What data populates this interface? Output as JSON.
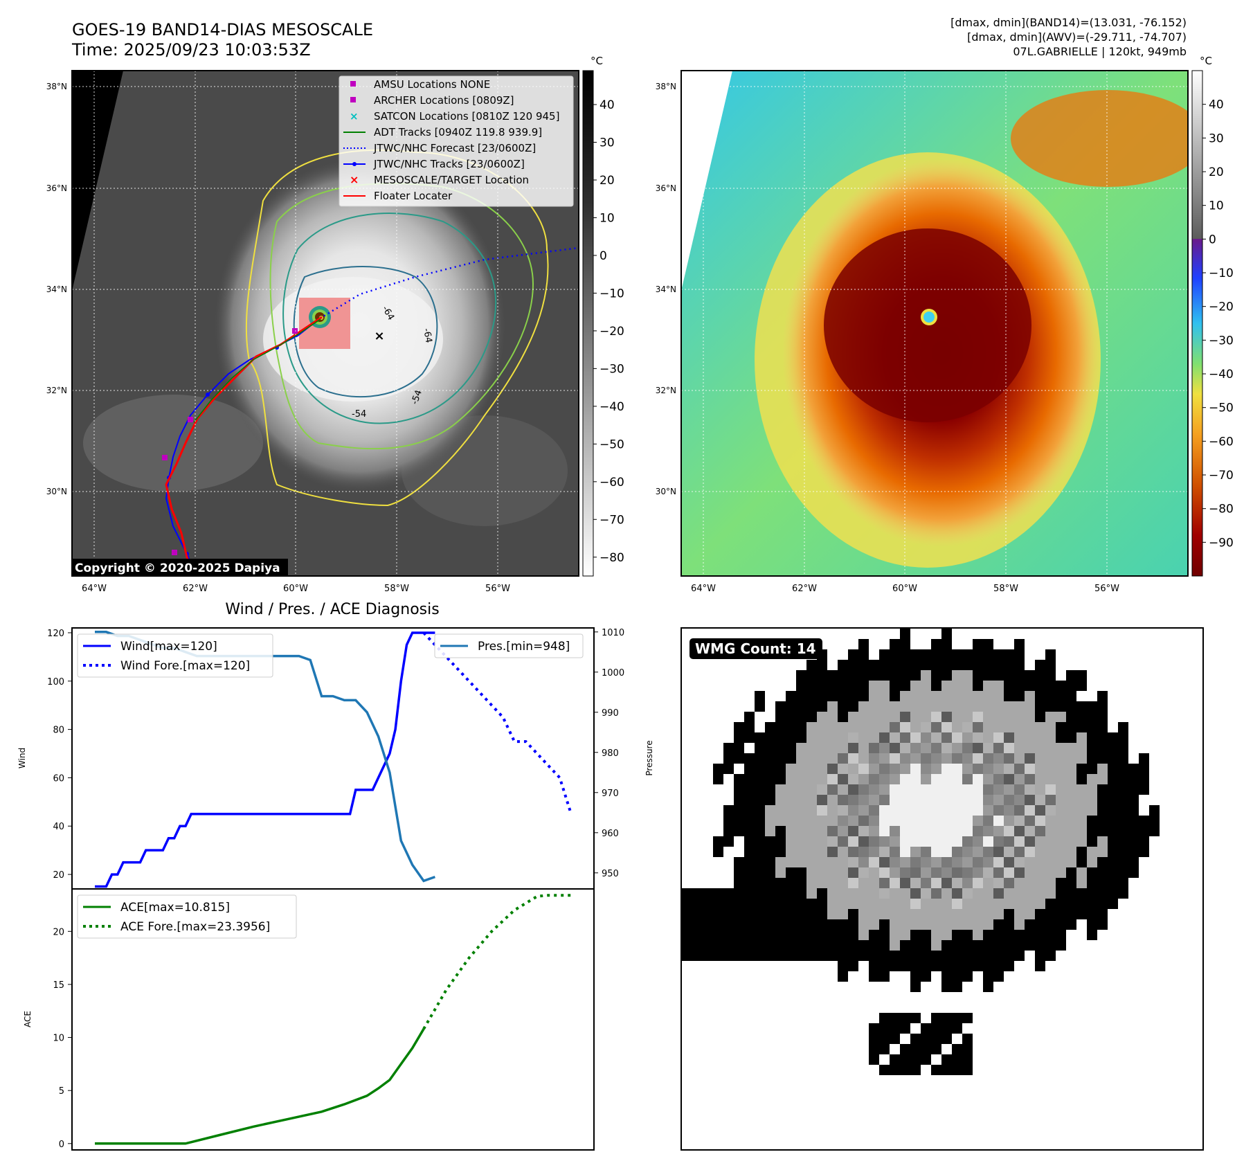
{
  "header": {
    "title_line1": "GOES-19 BAND14-DIAS MESOSCALE",
    "title_line2": "Time: 2025/09/23 10:03:53Z",
    "info_line1": "[dmax, dmin](BAND14)=(13.031, -76.152)",
    "info_line2": "[dmax, dmin](AWV)=(-29.711, -74.707)",
    "info_line3": "07L.GABRIELLE | 120kt, 949mb"
  },
  "map_panels": {
    "lat_labels": [
      "38°N",
      "36°N",
      "34°N",
      "32°N",
      "30°N"
    ],
    "lon_labels": [
      "64°W",
      "62°W",
      "60°W",
      "58°W",
      "56°W"
    ],
    "copyright": "Copyright © 2020-2025 Dapiya",
    "contour_labels": [
      "-64",
      "-64",
      "-54",
      "-54"
    ],
    "colorbar_unit": "°C",
    "gray_colorbar_ticks": [
      "40",
      "30",
      "20",
      "10",
      "0",
      "−10",
      "−20",
      "−30",
      "−40",
      "−50",
      "−60",
      "−70",
      "−80"
    ],
    "color_colorbar_ticks": [
      "40",
      "30",
      "20",
      "10",
      "0",
      "−10",
      "−20",
      "−30",
      "−40",
      "−50",
      "−60",
      "−70",
      "−80",
      "−90"
    ],
    "legend": [
      "AMSU Locations NONE",
      "ARCHER Locations [0809Z]",
      "SATCON Locations [0810Z 120 945]",
      "ADT Tracks [0940Z 119.8 939.9]",
      "JTWC/NHC Forecast [23/0600Z]",
      "JTWC/NHC Tracks [23/0600Z]",
      "MESOSCALE/TARGET Location",
      "Floater Locater"
    ],
    "colors": {
      "amsu": "#c000c0",
      "archer": "#c000c0",
      "satcon": "#00bfbf",
      "adt": "#008000",
      "forecast": "#0000ff",
      "tracks": "#0000ff",
      "target": "#ff0000",
      "floater": "#ff0000",
      "contour_yellow": "#f0e040",
      "contour_green": "#8ad04a",
      "contour_teal": "#2a9a88",
      "contour_blue": "#2b6f8e"
    }
  },
  "diagnosis": {
    "title": "Wind / Pres. / ACE Diagnosis"
  },
  "wmg": {
    "label": "WMG Count: 14"
  },
  "chart_data": [
    {
      "type": "line",
      "id": "wind-pressure",
      "ylabel": "Wind",
      "ylabel_right": "Pressure",
      "ylim": [
        14,
        122
      ],
      "ylim_right": [
        946,
        1011
      ],
      "yticks": [
        20,
        40,
        60,
        80,
        100,
        120
      ],
      "yticks_right": [
        950,
        960,
        970,
        980,
        990,
        1000,
        1010
      ],
      "x_range": [
        0,
        84
      ],
      "series": [
        {
          "name": "Wind[max=120]",
          "color": "#0000ff",
          "style": "solid",
          "axis": "left",
          "x": [
            0,
            2,
            3,
            4,
            5,
            6,
            7,
            8,
            9,
            10,
            11,
            12,
            13,
            14,
            15,
            16,
            17,
            18,
            19,
            20,
            21,
            22,
            23,
            24,
            25,
            26,
            27,
            28,
            29,
            30,
            31,
            32,
            33,
            34,
            35,
            36,
            37,
            38,
            39,
            40,
            41,
            42,
            43,
            44,
            45,
            46,
            47,
            48,
            49,
            50,
            51,
            52,
            53,
            54,
            55,
            56,
            57,
            58,
            59,
            60
          ],
          "values": [
            15,
            15,
            20,
            20,
            25,
            25,
            25,
            25,
            30,
            30,
            30,
            30,
            35,
            35,
            40,
            40,
            45,
            45,
            45,
            45,
            45,
            45,
            45,
            45,
            45,
            45,
            45,
            45,
            45,
            45,
            45,
            45,
            45,
            45,
            45,
            45,
            45,
            45,
            45,
            45,
            45,
            45,
            45,
            45,
            45,
            55,
            55,
            55,
            55,
            60,
            65,
            70,
            80,
            100,
            115,
            120,
            120,
            120,
            120,
            120
          ]
        },
        {
          "name": "Wind Fore.[max=120]",
          "color": "#0000ff",
          "style": "dotted",
          "axis": "left",
          "x": [
            58,
            62,
            66,
            70,
            72,
            74,
            76,
            78,
            80,
            82,
            84
          ],
          "values": [
            120,
            110,
            100,
            90,
            85,
            75,
            75,
            70,
            65,
            60,
            45
          ]
        },
        {
          "name": "Pres.[min=948]",
          "color": "#1f77b4",
          "style": "solid",
          "axis": "right",
          "x": [
            0,
            2,
            4,
            6,
            8,
            10,
            12,
            14,
            16,
            18,
            20,
            22,
            24,
            26,
            28,
            30,
            32,
            34,
            36,
            38,
            40,
            42,
            44,
            46,
            48,
            50,
            52,
            54,
            56,
            58,
            60
          ],
          "values": [
            1010,
            1010,
            1009,
            1009,
            1008,
            1007,
            1006,
            1006,
            1005,
            1004,
            1004,
            1004,
            1004,
            1004,
            1004,
            1004,
            1004,
            1004,
            1004,
            1003,
            994,
            994,
            993,
            993,
            990,
            984,
            975,
            958,
            952,
            948,
            949
          ]
        }
      ],
      "legend": [
        "Wind[max=120]",
        "Wind Fore.[max=120]",
        "Pres.[min=948]"
      ]
    },
    {
      "type": "line",
      "id": "ace",
      "ylabel": "ACE",
      "ylim": [
        -0.6,
        24
      ],
      "yticks": [
        0,
        5,
        10,
        15,
        20
      ],
      "x_range": [
        0,
        84
      ],
      "series": [
        {
          "name": "ACE[max=10.815]",
          "color": "#008000",
          "style": "solid",
          "x": [
            0,
            16,
            22,
            28,
            34,
            40,
            44,
            48,
            50,
            52,
            54,
            56,
            58
          ],
          "values": [
            0,
            0,
            0.8,
            1.6,
            2.3,
            3.0,
            3.7,
            4.5,
            5.2,
            6.0,
            7.5,
            9.0,
            10.8
          ]
        },
        {
          "name": "ACE Fore.[max=23.3956]",
          "color": "#008000",
          "style": "dotted",
          "x": [
            58,
            62,
            66,
            70,
            74,
            78,
            80,
            84
          ],
          "values": [
            10.8,
            14.5,
            17.5,
            20.0,
            22.0,
            23.3,
            23.4,
            23.4
          ]
        }
      ],
      "legend": [
        "ACE[max=10.815]",
        "ACE Fore.[max=23.3956]"
      ]
    }
  ]
}
